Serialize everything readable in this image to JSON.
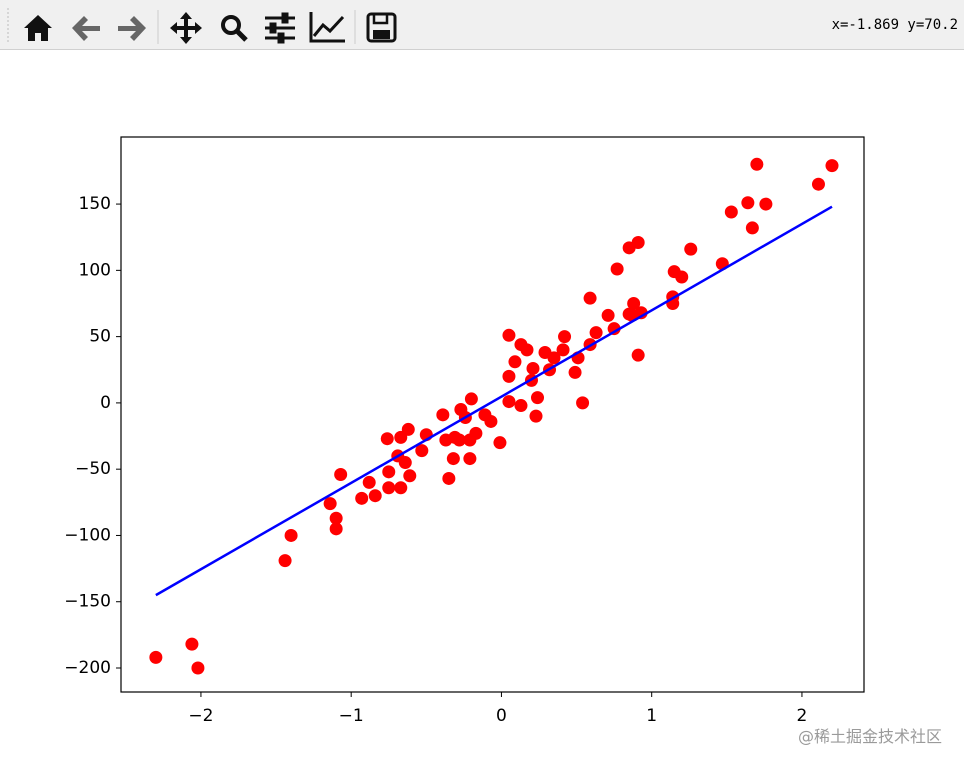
{
  "toolbar": {
    "coordinates": "x=-1.869 y=70.2"
  },
  "watermark": "@稀土掘金技术社区",
  "chart_data": {
    "type": "scatter",
    "xlim": [
      -2.532,
      2.413
    ],
    "ylim": [
      -218.1,
      200.6
    ],
    "xticks": [
      {
        "value": -2,
        "label": "−2"
      },
      {
        "value": -1,
        "label": "−1"
      },
      0,
      1,
      2
    ],
    "yticks": [
      {
        "value": -200,
        "label": "−200"
      },
      {
        "value": -150,
        "label": "−150"
      },
      {
        "value": -100,
        "label": "−100"
      },
      {
        "value": -50,
        "label": "−50"
      },
      0,
      50,
      100,
      150
    ],
    "series": [
      {
        "type": "scatter",
        "color": "#ff0000",
        "x": [
          -2.3,
          -2.06,
          -2.02,
          -1.44,
          -1.4,
          -1.14,
          -1.1,
          -1.1,
          -1.07,
          -0.93,
          -0.88,
          -0.84,
          -0.76,
          -0.75,
          -0.75,
          -0.69,
          -0.67,
          -0.67,
          -0.64,
          -0.62,
          -0.61,
          -0.53,
          -0.5,
          -0.39,
          -0.37,
          -0.35,
          -0.32,
          -0.31,
          -0.28,
          -0.27,
          -0.24,
          -0.21,
          -0.21,
          -0.2,
          -0.17,
          -0.11,
          -0.07,
          -0.01,
          0.05,
          0.05,
          0.05,
          0.09,
          0.13,
          0.13,
          0.17,
          0.2,
          0.21,
          0.23,
          0.24,
          0.29,
          0.32,
          0.35,
          0.41,
          0.42,
          0.49,
          0.51,
          0.54,
          0.59,
          0.59,
          0.63,
          0.71,
          0.75,
          0.77,
          0.85,
          0.85,
          0.87,
          0.88,
          0.91,
          0.91,
          0.93,
          1.14,
          1.14,
          1.15,
          1.2,
          1.26,
          1.47,
          1.53,
          1.64,
          1.67,
          1.7,
          1.76,
          2.11,
          2.2
        ],
        "values": [
          -192,
          -182,
          -200,
          -119,
          -100,
          -76,
          -87,
          -95,
          -54,
          -72,
          -60,
          -70,
          -27,
          -64,
          -52,
          -40,
          -64,
          -26,
          -45,
          -20,
          -55,
          -36,
          -24,
          -9,
          -28,
          -57,
          -42,
          -26,
          -28,
          -5,
          -11,
          -42,
          -28,
          3,
          -23,
          -9,
          -14,
          -30,
          20,
          51,
          1,
          31,
          44,
          -2,
          40,
          17,
          26,
          -10,
          4,
          38,
          25,
          34,
          40,
          50,
          23,
          34,
          0,
          44,
          79,
          53,
          66,
          56,
          101,
          67,
          117,
          66,
          75,
          36,
          121,
          68,
          80,
          75,
          99,
          95,
          116,
          105,
          144,
          151,
          132,
          180,
          150,
          165,
          179
        ]
      },
      {
        "type": "line",
        "color": "#0000ff",
        "x": [
          -2.3,
          2.2
        ],
        "values": [
          -145,
          148
        ]
      }
    ]
  }
}
